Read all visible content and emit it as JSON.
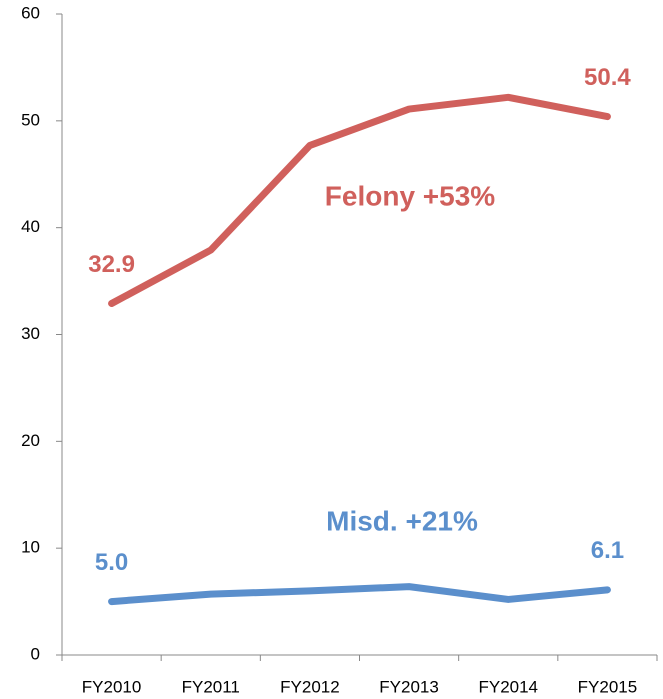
{
  "chart_data": {
    "type": "line",
    "categories": [
      "FY2010",
      "FY2011",
      "FY2012",
      "FY2013",
      "FY2014",
      "FY2015"
    ],
    "series": [
      {
        "name": "Felony",
        "color": "#d0605c",
        "values": [
          32.9,
          37.9,
          47.7,
          51.1,
          52.2,
          50.4
        ],
        "value_labels": [
          "32.9",
          null,
          null,
          null,
          null,
          "50.4"
        ],
        "annotation": "Felony +53%"
      },
      {
        "name": "Misd.",
        "color": "#5b8fcc",
        "values": [
          5.0,
          5.7,
          6.0,
          6.4,
          5.2,
          6.1
        ],
        "value_labels": [
          "5.0",
          null,
          null,
          null,
          null,
          "6.1"
        ],
        "annotation": "Misd. +21%"
      }
    ],
    "ylim": [
      0,
      60
    ],
    "yticks": [
      0,
      10,
      20,
      30,
      40,
      50,
      60
    ],
    "grid": false
  }
}
